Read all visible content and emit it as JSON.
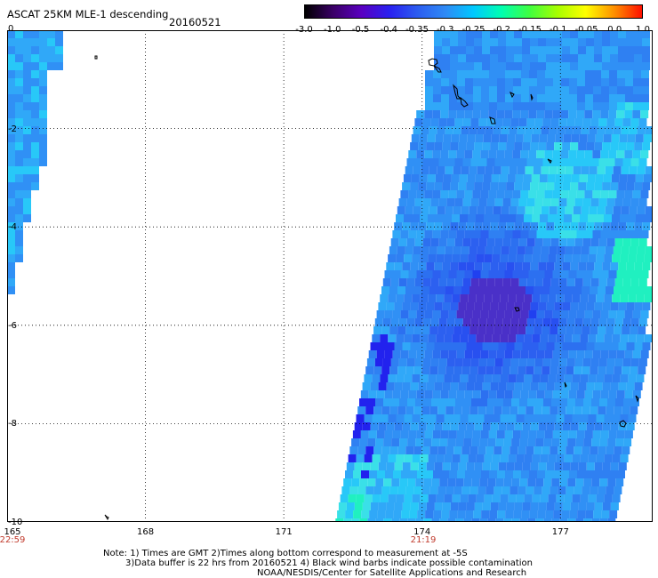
{
  "title": "ASCAT 25KM MLE-1 descending",
  "date": "20160521",
  "colorbar": {
    "labels": [
      "-3.0",
      "-1.0",
      "-0.5",
      "-0.4",
      "-0.35",
      "-0.3",
      "-0.25",
      "-0.2",
      "-0.15",
      "-0.1",
      "-0.05",
      "0.0",
      "1.0"
    ],
    "colors": [
      "#000000",
      "#3a0066",
      "#5a00c0",
      "#2a20f0",
      "#2c5cf0",
      "#2f8af5",
      "#00c8ff",
      "#00ffb0",
      "#40ff40",
      "#a8ff00",
      "#ffff00",
      "#ff9000",
      "#ff1000"
    ]
  },
  "axes": {
    "lat_labels": [
      "0",
      "-2",
      "-4",
      "-6",
      "-8",
      "-10"
    ],
    "lon_labels": [
      "165",
      "168",
      "171",
      "174",
      "177"
    ],
    "lat_range": [
      -10,
      0
    ],
    "lon_range": [
      165,
      179
    ],
    "grid": "dotted"
  },
  "times": [
    "22:59",
    "21:19"
  ],
  "notes": [
    "Note: 1) Times are GMT 2)Times along bottom correspond to measurement at -5S",
    "3)Data buffer is 22 hrs from 20160521 4) Black wind barbs indicate possible contamination",
    "NOAA/NESDIS/Center for Satellite Applications and Research"
  ]
}
